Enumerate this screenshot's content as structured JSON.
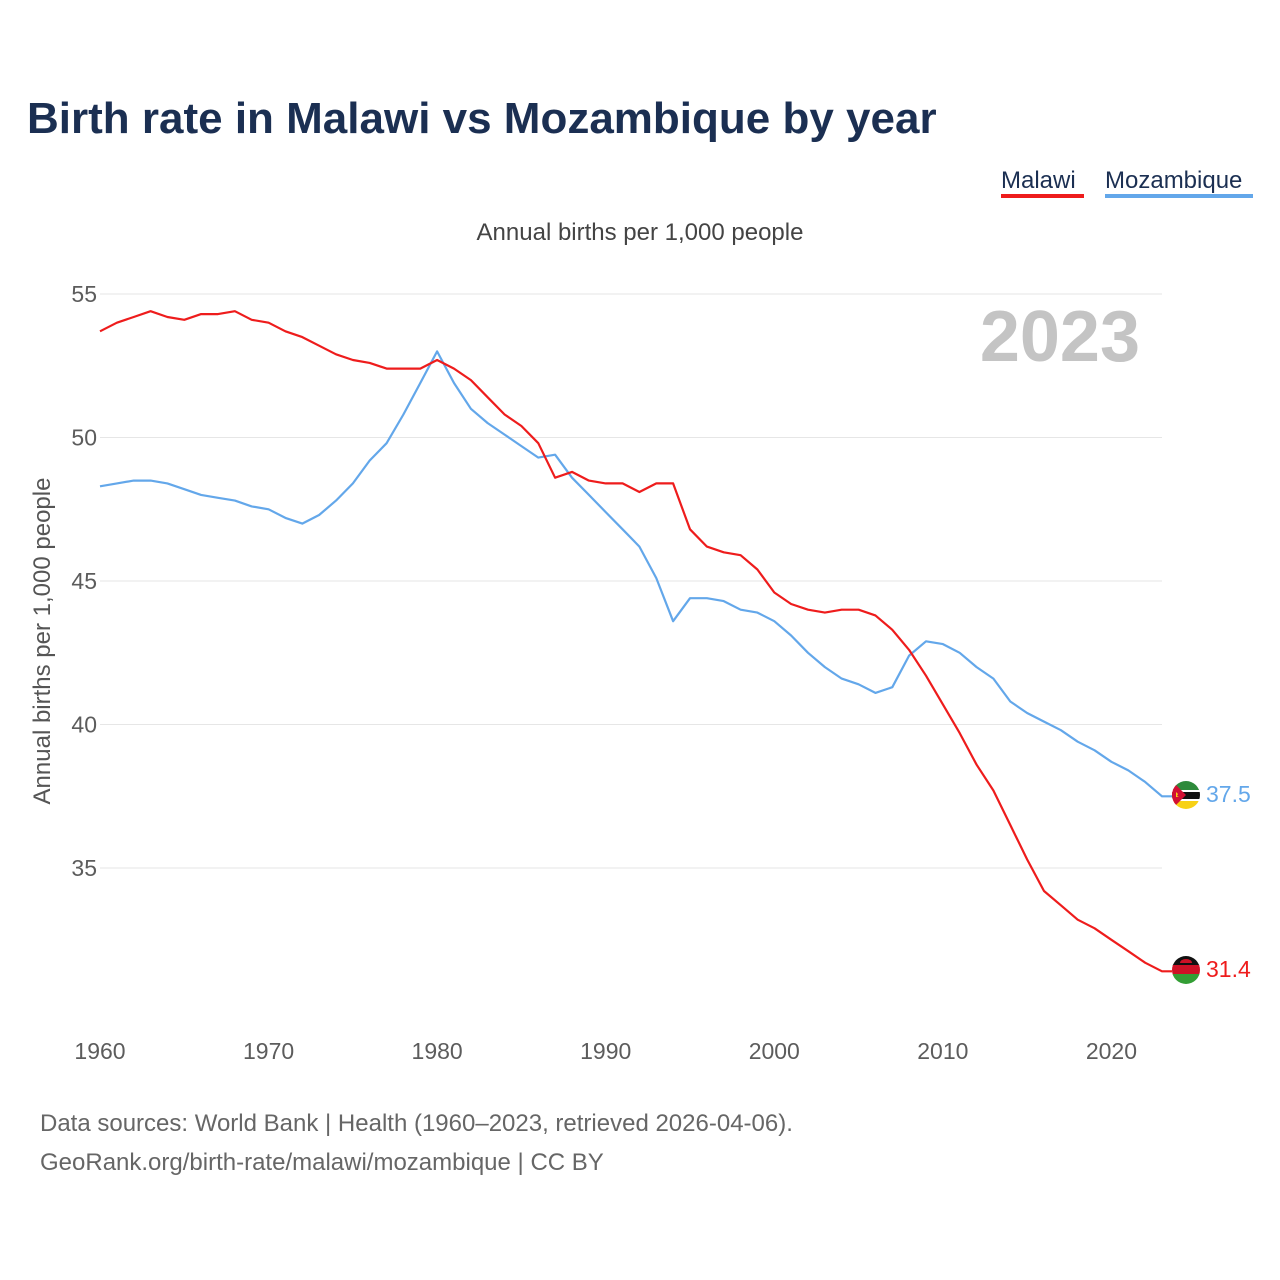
{
  "chart_data": {
    "type": "line",
    "title": "Birth rate in Malawi vs Mozambique by year",
    "subtitle": "Annual births per 1,000 people",
    "ylabel": "Annual births per 1,000 people",
    "xlabel": "",
    "year_display": "2023",
    "xlim": [
      1960,
      2023
    ],
    "ylim": [
      30,
      56
    ],
    "x_ticks": [
      1960,
      1970,
      1980,
      1990,
      2000,
      2010,
      2020
    ],
    "y_ticks": [
      35,
      40,
      45,
      50,
      55
    ],
    "grid": true,
    "legend_position": "top-right",
    "x": [
      1960,
      1961,
      1962,
      1963,
      1964,
      1965,
      1966,
      1967,
      1968,
      1969,
      1970,
      1971,
      1972,
      1973,
      1974,
      1975,
      1976,
      1977,
      1978,
      1979,
      1980,
      1981,
      1982,
      1983,
      1984,
      1985,
      1986,
      1987,
      1988,
      1989,
      1990,
      1991,
      1992,
      1993,
      1994,
      1995,
      1996,
      1997,
      1998,
      1999,
      2000,
      2001,
      2002,
      2003,
      2004,
      2005,
      2006,
      2007,
      2008,
      2009,
      2010,
      2011,
      2012,
      2013,
      2014,
      2015,
      2016,
      2017,
      2018,
      2019,
      2020,
      2021,
      2022,
      2023
    ],
    "series": [
      {
        "name": "Malawi",
        "color": "#ee1c1c",
        "end_label": "31.4",
        "flag": "malawi-flag",
        "values": [
          53.7,
          54.0,
          54.2,
          54.4,
          54.2,
          54.1,
          54.3,
          54.3,
          54.4,
          54.1,
          54.0,
          53.7,
          53.5,
          53.2,
          52.9,
          52.7,
          52.6,
          52.4,
          52.4,
          52.4,
          52.7,
          52.4,
          52.0,
          51.4,
          50.8,
          50.4,
          49.8,
          48.6,
          48.8,
          48.5,
          48.4,
          48.4,
          48.1,
          48.4,
          48.4,
          46.8,
          46.2,
          46.0,
          45.9,
          45.4,
          44.6,
          44.2,
          44.0,
          43.9,
          44.0,
          44.0,
          43.8,
          43.3,
          42.6,
          41.7,
          40.7,
          39.7,
          38.6,
          37.7,
          36.5,
          35.3,
          34.2,
          33.7,
          33.2,
          32.9,
          32.5,
          32.1,
          31.7,
          31.4
        ]
      },
      {
        "name": "Mozambique",
        "color": "#63a7ea",
        "end_label": "37.5",
        "flag": "mozambique-flag",
        "values": [
          48.3,
          48.4,
          48.5,
          48.5,
          48.4,
          48.2,
          48.0,
          47.9,
          47.8,
          47.6,
          47.5,
          47.2,
          47.0,
          47.3,
          47.8,
          48.4,
          49.2,
          49.8,
          50.8,
          51.9,
          53.0,
          51.9,
          51.0,
          50.5,
          50.1,
          49.7,
          49.3,
          49.4,
          48.6,
          48.0,
          47.4,
          46.8,
          46.2,
          45.1,
          43.6,
          44.4,
          44.4,
          44.3,
          44.0,
          43.9,
          43.6,
          43.1,
          42.5,
          42.0,
          41.6,
          41.4,
          41.1,
          41.3,
          42.4,
          42.9,
          42.8,
          42.5,
          42.0,
          41.6,
          40.8,
          40.4,
          40.1,
          39.8,
          39.4,
          39.1,
          38.7,
          38.4,
          38.0,
          37.5
        ]
      }
    ]
  },
  "footer": {
    "line1": "Data sources: World Bank | Health (1960–2023, retrieved 2026-04-06).",
    "line2": "GeoRank.org/birth-rate/malawi/mozambique | CC BY"
  }
}
